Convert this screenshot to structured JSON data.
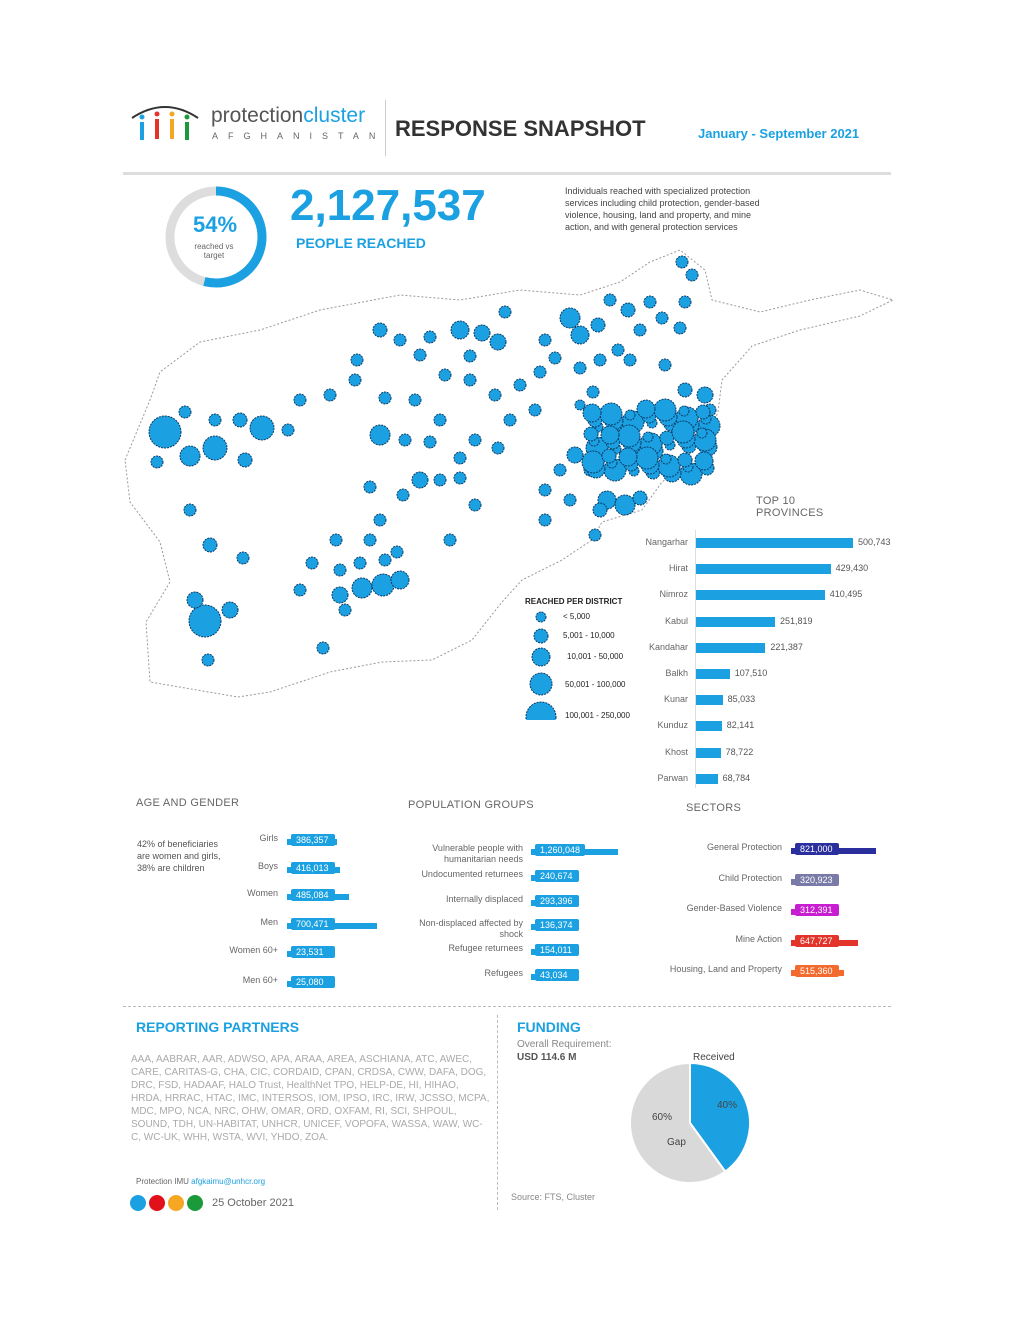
{
  "header": {
    "logo_word_1": "protection",
    "logo_word_2": "cluster",
    "logo_sub": "AFGHANISTAN",
    "title": "RESPONSE SNAPSHOT",
    "period": "January - September 2021"
  },
  "summary": {
    "percent_label": "54%",
    "percent_value": 54,
    "percent_caption": "reached vs target",
    "people_reached": "2,127,537",
    "people_reached_label": "PEOPLE REACHED",
    "description": "Individuals reached with specialized protection services including child protection, gender-based violence, housing, land and property, and mine action, and with general protection services"
  },
  "map": {
    "legend_title": "REACHED PER DISTRICT",
    "legend_items": [
      "< 5,000",
      "5,001 - 10,000",
      "10,001 - 50,000",
      "50,001 - 100,000",
      "100,001 - 250,000"
    ]
  },
  "colors": {
    "accent": "#1ba1e2",
    "gp": "#2b2f9e",
    "cp": "#7a7aa8",
    "gbv": "#c81ed2",
    "ma": "#e2342a",
    "hlp": "#f26a2e",
    "gap": "#d9d9d9"
  },
  "chart_data": [
    {
      "type": "bar",
      "title": "TOP 10 PROVINCES",
      "categories": [
        "Nangarhar",
        "Hirat",
        "Nimroz",
        "Kabul",
        "Kandahar",
        "Balkh",
        "Kunar",
        "Kunduz",
        "Khost",
        "Parwan"
      ],
      "values": [
        500743,
        429430,
        410495,
        251819,
        221387,
        107510,
        85033,
        82141,
        78722,
        68784
      ],
      "labels": [
        "500,743",
        "429,430",
        "410,495",
        "251,819",
        "221,387",
        "107,510",
        "85,033",
        "82,141",
        "78,722",
        "68,784"
      ]
    },
    {
      "type": "bar",
      "title": "AGE AND GENDER",
      "note": "42% of beneficiaries are women and girls, 38% are children",
      "categories": [
        "Girls",
        "Boys",
        "Women",
        "Men",
        "Women 60+",
        "Men 60+"
      ],
      "values": [
        386357,
        416013,
        485084,
        700471,
        23531,
        25080
      ],
      "labels": [
        "386,357",
        "416,013",
        "485,084",
        "700,471",
        "23,531",
        "25,080"
      ]
    },
    {
      "type": "bar",
      "title": "POPULATION GROUPS",
      "categories": [
        "Vulnerable people with humanitarian needs",
        "Undocumented returnees",
        "Internally displaced",
        "Non-displaced affected by shock",
        "Refugee returnees",
        "Refugees"
      ],
      "values": [
        1260048,
        240674,
        293396,
        136374,
        154011,
        43034
      ],
      "labels": [
        "1,260,048",
        "240,674",
        "293,396",
        "136,374",
        "154,011",
        "43,034"
      ]
    },
    {
      "type": "bar",
      "title": "SECTORS",
      "categories": [
        "General Protection",
        "Child Protection",
        "Gender-Based Violence",
        "Mine Action",
        "Housing, Land and Property"
      ],
      "values": [
        821000,
        320923,
        312391,
        647727,
        515360
      ],
      "labels": [
        "821,000",
        "320,923",
        "312,391",
        "647,727",
        "515,360"
      ]
    },
    {
      "type": "pie",
      "title": "FUNDING",
      "categories": [
        "Received",
        "Gap"
      ],
      "values": [
        40,
        60
      ],
      "labels": [
        "40%",
        "60%"
      ]
    }
  ],
  "partners": {
    "title": "REPORTING PARTNERS",
    "list": "AAA, AABRAR, AAR, ADWSO, APA, ARAA, AREA, ASCHIANA, ATC, AWEC, CARE, CARITAS-G, CHA, CIC, CORDAID, CPAN, CRDSA, CWW, DAFA, DOG, DRC, FSD, HADAAF, HALO Trust, HealthNet TPO, HELP-DE, HI, HIHAO, HRDA, HRRAC, HTAC, IMC, INTERSOS, IOM, IPSO, IRC, IRW, JCSSO, MCPA, MDC, MPO, NCA, NRC, OHW, OMAR, ORD, OXFAM, RI, SCI, SHPOUL, SOUND, TDH, UN-HABITAT, UNHCR, UNICEF, VOPOFA, WASSA, WAW, WC-C, WC-UK, WHH, WSTA, WVI, YHDO, ZOA.",
    "contact_label": "Protection IMU",
    "contact_email": "afgkaimu@unhcr.org",
    "date": "25 October 2021"
  },
  "funding": {
    "title": "FUNDING",
    "requirement_label": "Overall Requirement:",
    "requirement_value": "USD 114.6 M",
    "source": "Source: FTS, Cluster"
  }
}
